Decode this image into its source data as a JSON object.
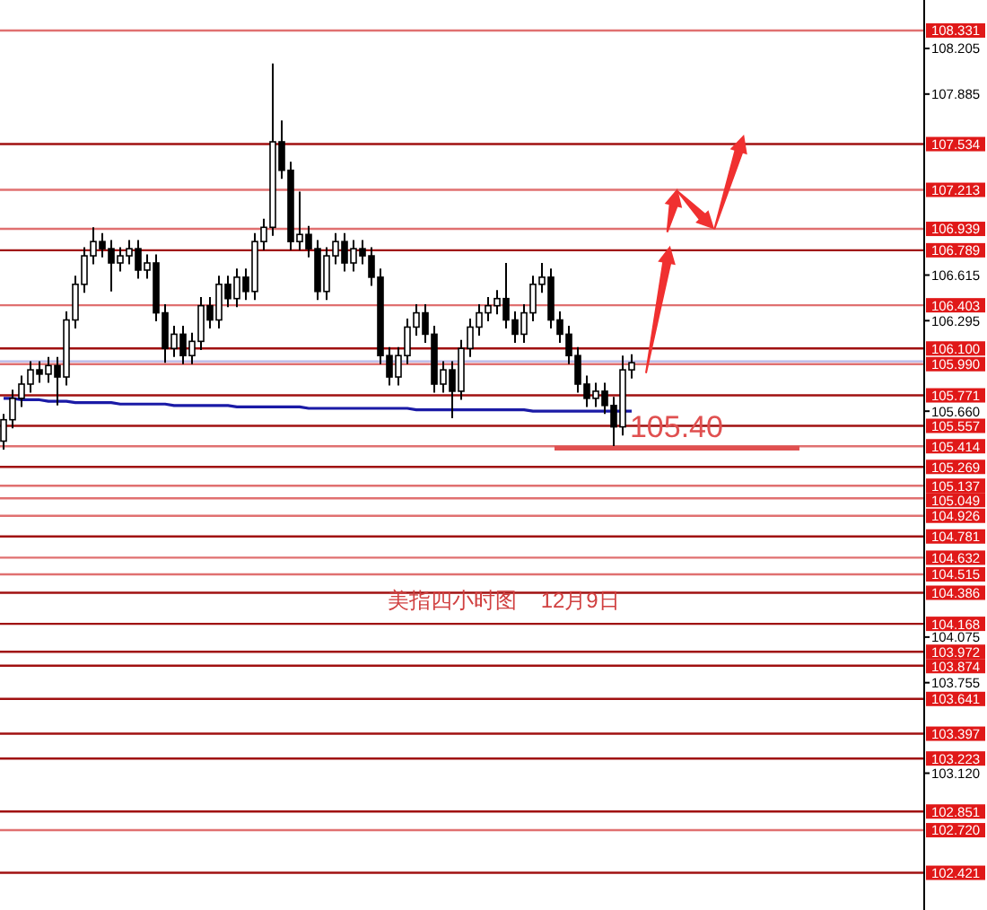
{
  "chart_data": {
    "type": "candlestick",
    "categories": [
      null,
      null,
      null,
      null,
      null,
      null,
      null,
      null,
      null,
      null,
      null,
      null,
      null,
      null,
      null,
      null,
      null,
      null,
      null,
      null,
      null,
      null,
      null,
      null,
      null,
      null,
      null,
      null,
      null,
      null,
      null,
      null,
      null,
      null,
      null,
      null,
      null,
      null,
      null,
      null,
      null,
      null,
      null,
      null,
      null,
      null,
      null,
      null,
      null,
      null,
      null,
      null,
      null,
      null,
      null,
      null,
      null,
      null,
      null,
      null,
      null,
      null,
      null,
      null,
      null,
      null,
      null,
      null,
      null,
      null,
      null
    ],
    "ohlc": [
      [
        105.45,
        105.64,
        105.39,
        105.6
      ],
      [
        105.6,
        105.81,
        105.54,
        105.75
      ],
      [
        105.75,
        105.91,
        105.69,
        105.85
      ],
      [
        105.85,
        106.01,
        105.79,
        105.95
      ],
      [
        105.95,
        106.01,
        105.86,
        105.92
      ],
      [
        105.92,
        106.04,
        105.86,
        105.98
      ],
      [
        105.98,
        106.04,
        105.7,
        105.9
      ],
      [
        105.9,
        106.36,
        105.84,
        106.3
      ],
      [
        106.3,
        106.61,
        106.24,
        106.55
      ],
      [
        106.55,
        106.81,
        106.49,
        106.75
      ],
      [
        106.75,
        106.95,
        106.69,
        106.85
      ],
      [
        106.85,
        106.91,
        106.74,
        106.8
      ],
      [
        106.8,
        106.86,
        106.5,
        106.7
      ],
      [
        106.7,
        106.81,
        106.64,
        106.75
      ],
      [
        106.75,
        106.86,
        106.69,
        106.8
      ],
      [
        106.8,
        106.86,
        106.59,
        106.65
      ],
      [
        106.65,
        106.76,
        106.59,
        106.7
      ],
      [
        106.7,
        106.76,
        106.29,
        106.35
      ],
      [
        106.35,
        106.41,
        106.0,
        106.1
      ],
      [
        106.1,
        106.26,
        106.04,
        106.2
      ],
      [
        106.2,
        106.26,
        105.99,
        106.05
      ],
      [
        106.05,
        106.21,
        105.99,
        106.15
      ],
      [
        106.15,
        106.46,
        106.09,
        106.4
      ],
      [
        106.4,
        106.46,
        106.24,
        106.3
      ],
      [
        106.3,
        106.61,
        106.24,
        106.55
      ],
      [
        106.55,
        106.61,
        106.39,
        106.45
      ],
      [
        106.45,
        106.66,
        106.39,
        106.6
      ],
      [
        106.6,
        106.66,
        106.44,
        106.5
      ],
      [
        106.5,
        106.91,
        106.44,
        106.85
      ],
      [
        106.85,
        107.01,
        106.79,
        106.95
      ],
      [
        106.95,
        108.1,
        106.89,
        107.55
      ],
      [
        107.55,
        107.7,
        107.29,
        107.35
      ],
      [
        107.35,
        107.41,
        106.79,
        106.85
      ],
      [
        106.85,
        107.2,
        106.79,
        106.9
      ],
      [
        106.9,
        106.96,
        106.74,
        106.8
      ],
      [
        106.8,
        106.86,
        106.44,
        106.5
      ],
      [
        106.5,
        106.81,
        106.44,
        106.75
      ],
      [
        106.75,
        106.91,
        106.69,
        106.85
      ],
      [
        106.85,
        106.91,
        106.64,
        106.7
      ],
      [
        106.7,
        106.86,
        106.64,
        106.8
      ],
      [
        106.8,
        106.86,
        106.69,
        106.75
      ],
      [
        106.75,
        106.81,
        106.54,
        106.6
      ],
      [
        106.6,
        106.66,
        105.99,
        106.05
      ],
      [
        106.05,
        106.11,
        105.84,
        105.9
      ],
      [
        105.9,
        106.11,
        105.84,
        106.05
      ],
      [
        106.05,
        106.31,
        105.99,
        106.25
      ],
      [
        106.25,
        106.41,
        106.19,
        106.35
      ],
      [
        106.35,
        106.41,
        106.14,
        106.2
      ],
      [
        106.2,
        106.26,
        105.79,
        105.85
      ],
      [
        105.85,
        106.01,
        105.79,
        105.95
      ],
      [
        105.95,
        106.01,
        105.61,
        105.8
      ],
      [
        105.8,
        106.16,
        105.74,
        106.1
      ],
      [
        106.1,
        106.31,
        106.04,
        106.25
      ],
      [
        106.25,
        106.41,
        106.19,
        106.35
      ],
      [
        106.35,
        106.46,
        106.29,
        106.4
      ],
      [
        106.4,
        106.51,
        106.34,
        106.45
      ],
      [
        106.45,
        106.7,
        106.24,
        106.3
      ],
      [
        106.3,
        106.36,
        106.14,
        106.2
      ],
      [
        106.2,
        106.41,
        106.14,
        106.35
      ],
      [
        106.35,
        106.61,
        106.29,
        106.55
      ],
      [
        106.55,
        106.7,
        106.49,
        106.6
      ],
      [
        106.6,
        106.66,
        106.24,
        106.3
      ],
      [
        106.3,
        106.36,
        106.14,
        106.2
      ],
      [
        106.2,
        106.26,
        105.99,
        106.05
      ],
      [
        106.05,
        106.11,
        105.79,
        105.85
      ],
      [
        105.85,
        105.91,
        105.69,
        105.75
      ],
      [
        105.75,
        105.86,
        105.69,
        105.8
      ],
      [
        105.8,
        105.86,
        105.64,
        105.7
      ],
      [
        105.7,
        105.76,
        105.4,
        105.55
      ],
      [
        105.55,
        106.05,
        105.49,
        105.95
      ],
      [
        105.95,
        106.06,
        105.89,
        106.0
      ]
    ],
    "series": [
      {
        "type": "line",
        "values": [
          105.75,
          105.75,
          105.74,
          105.74,
          105.74,
          105.73,
          105.73,
          105.73,
          105.72,
          105.72,
          105.72,
          105.72,
          105.72,
          105.71,
          105.71,
          105.71,
          105.71,
          105.71,
          105.71,
          105.7,
          105.7,
          105.7,
          105.7,
          105.7,
          105.7,
          105.7,
          105.69,
          105.69,
          105.69,
          105.69,
          105.69,
          105.69,
          105.69,
          105.69,
          105.68,
          105.68,
          105.68,
          105.68,
          105.68,
          105.68,
          105.68,
          105.68,
          105.68,
          105.68,
          105.68,
          105.68,
          105.67,
          105.67,
          105.67,
          105.67,
          105.67,
          105.67,
          105.67,
          105.67,
          105.67,
          105.67,
          105.67,
          105.67,
          105.67,
          105.66,
          105.66,
          105.66,
          105.66,
          105.66,
          105.66,
          105.66,
          105.66,
          105.66,
          105.66,
          105.66,
          105.66
        ],
        "color": "#1a1aa6"
      }
    ],
    "ylim": [
      102.16,
      108.545
    ],
    "yticks": [
      {
        "value": 108.205,
        "label": "108.205"
      },
      {
        "value": 107.885,
        "label": "107.885"
      },
      {
        "value": 106.615,
        "label": "106.615"
      },
      {
        "value": 106.295,
        "label": "106.295"
      },
      {
        "value": 105.66,
        "label": "105.660"
      },
      {
        "value": 104.075,
        "label": "104.075"
      },
      {
        "value": 103.755,
        "label": "103.755"
      },
      {
        "value": 103.12,
        "label": "103.120"
      }
    ],
    "tick_labels": "y",
    "ref_lines": [
      {
        "axis": "y",
        "value": 108.331,
        "label": "108.331",
        "color": "#e07070"
      },
      {
        "axis": "y",
        "value": 107.534,
        "label": "107.534",
        "color": "#a01010"
      },
      {
        "axis": "y",
        "value": 107.213,
        "label": "107.213",
        "color": "#e07070"
      },
      {
        "axis": "y",
        "value": 106.939,
        "label": "106.939",
        "color": "#e07070"
      },
      {
        "axis": "y",
        "value": 106.789,
        "label": "106.789",
        "color": "#a01010"
      },
      {
        "axis": "y",
        "value": 106.403,
        "label": "106.403",
        "color": "#e07070"
      },
      {
        "axis": "y",
        "value": 106.1,
        "label": "106.100",
        "color": "#a01010"
      },
      {
        "axis": "y",
        "value": 106.01,
        "label": null,
        "color": "#b8b8e8"
      },
      {
        "axis": "y",
        "value": 105.99,
        "label": "105.990",
        "color": "#e07070"
      },
      {
        "axis": "y",
        "value": 105.771,
        "label": "105.771",
        "color": "#a01010"
      },
      {
        "axis": "y",
        "value": 105.557,
        "label": "105.557",
        "color": "#a01010"
      },
      {
        "axis": "y",
        "value": 105.414,
        "label": "105.414",
        "color": "#e07070"
      },
      {
        "axis": "y",
        "value": 105.269,
        "label": "105.269",
        "color": "#a01010"
      },
      {
        "axis": "y",
        "value": 105.137,
        "label": "105.137",
        "color": "#e07070"
      },
      {
        "axis": "y",
        "value": 105.049,
        "label": "105.049",
        "color": "#e07070"
      },
      {
        "axis": "y",
        "value": 104.926,
        "label": "104.926",
        "color": "#e07070"
      },
      {
        "axis": "y",
        "value": 104.781,
        "label": "104.781",
        "color": "#a01010"
      },
      {
        "axis": "y",
        "value": 104.632,
        "label": "104.632",
        "color": "#e07070"
      },
      {
        "axis": "y",
        "value": 104.515,
        "label": "104.515",
        "color": "#e07070"
      },
      {
        "axis": "y",
        "value": 104.386,
        "label": "104.386",
        "color": "#a01010"
      },
      {
        "axis": "y",
        "value": 104.168,
        "label": "104.168",
        "color": "#a01010"
      },
      {
        "axis": "y",
        "value": 103.972,
        "label": "103.972",
        "color": "#a01010"
      },
      {
        "axis": "y",
        "value": 103.874,
        "label": "103.874",
        "color": "#a01010"
      },
      {
        "axis": "y",
        "value": 103.641,
        "label": "103.641",
        "color": "#a01010"
      },
      {
        "axis": "y",
        "value": 103.397,
        "label": "103.397",
        "color": "#a01010"
      },
      {
        "axis": "y",
        "value": 103.223,
        "label": "103.223",
        "color": "#a01010"
      },
      {
        "axis": "y",
        "value": 102.851,
        "label": "102.851",
        "color": "#a01010"
      },
      {
        "axis": "y",
        "value": 102.72,
        "label": "102.720",
        "color": "#e07070"
      },
      {
        "axis": "y",
        "value": 102.421,
        "label": "102.421",
        "color": "#a01010"
      }
    ],
    "annotations": [
      {
        "text": "105.40",
        "y": 105.4
      },
      "美指四小时图    12月9日"
    ]
  }
}
